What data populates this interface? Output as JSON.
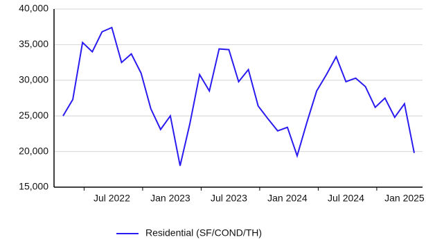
{
  "chart_data": {
    "type": "line",
    "categories": [
      null,
      null,
      null,
      null,
      null,
      "Jul 2022",
      null,
      null,
      null,
      null,
      null,
      "Jan 2023",
      null,
      null,
      null,
      null,
      null,
      "Jul 2023",
      null,
      null,
      null,
      null,
      null,
      "Jan 2024",
      null,
      null,
      null,
      null,
      null,
      "Jul 2024",
      null,
      null,
      null,
      null,
      null,
      "Jan 2025",
      null
    ],
    "series": [
      {
        "name": "Residential (SF/COND/TH)",
        "color": "#2a1bf0",
        "values": [
          25000,
          27300,
          35300,
          34000,
          36800,
          37400,
          32500,
          33700,
          31000,
          26000,
          23100,
          25000,
          18000,
          23900,
          30800,
          28500,
          34400,
          34300,
          29800,
          31500,
          26400,
          24600,
          22900,
          23400,
          19400,
          24100,
          28500,
          30800,
          33300,
          29800,
          30300,
          29100,
          26200,
          27500,
          24800,
          26700,
          19800
        ]
      }
    ],
    "ylim": [
      15000,
      40000
    ],
    "yticks": [
      {
        "value": 15000,
        "label": "15,000"
      },
      {
        "value": 20000,
        "label": "20,000"
      },
      {
        "value": 25000,
        "label": "25,000"
      },
      {
        "value": 30000,
        "label": "30,000"
      },
      {
        "value": 35000,
        "label": "35,000"
      },
      {
        "value": 40000,
        "label": "40,000"
      }
    ],
    "grid": true,
    "legend": "bottom"
  }
}
